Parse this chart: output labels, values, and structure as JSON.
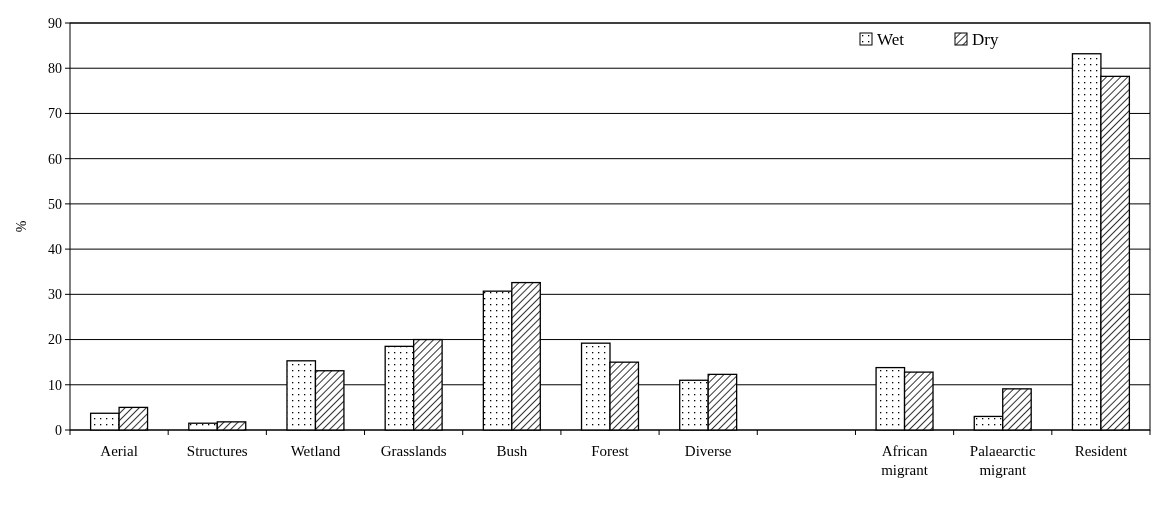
{
  "chart_data": {
    "type": "bar",
    "ylabel": "%",
    "categories": [
      "Aerial",
      "Structures",
      "Wetland",
      "Grasslands",
      "Bush",
      "Forest",
      "Diverse",
      null,
      "African migrant",
      "Palaearctic migrant",
      "Resident"
    ],
    "series": [
      {
        "name": "Wet",
        "color": "#000000",
        "values": [
          3.7,
          1.5,
          15.3,
          18.5,
          30.7,
          19.2,
          11,
          null,
          13.8,
          3,
          83.2
        ]
      },
      {
        "name": "Dry",
        "color": "#000000",
        "values": [
          5,
          1.8,
          13.1,
          20,
          32.6,
          15,
          12.3,
          null,
          12.8,
          9.1,
          78.2
        ]
      }
    ],
    "ylim": [
      0,
      90
    ],
    "yticks": [
      0,
      10,
      20,
      30,
      40,
      50,
      60,
      70,
      80,
      90
    ],
    "grid": "y",
    "legend": "top right"
  }
}
